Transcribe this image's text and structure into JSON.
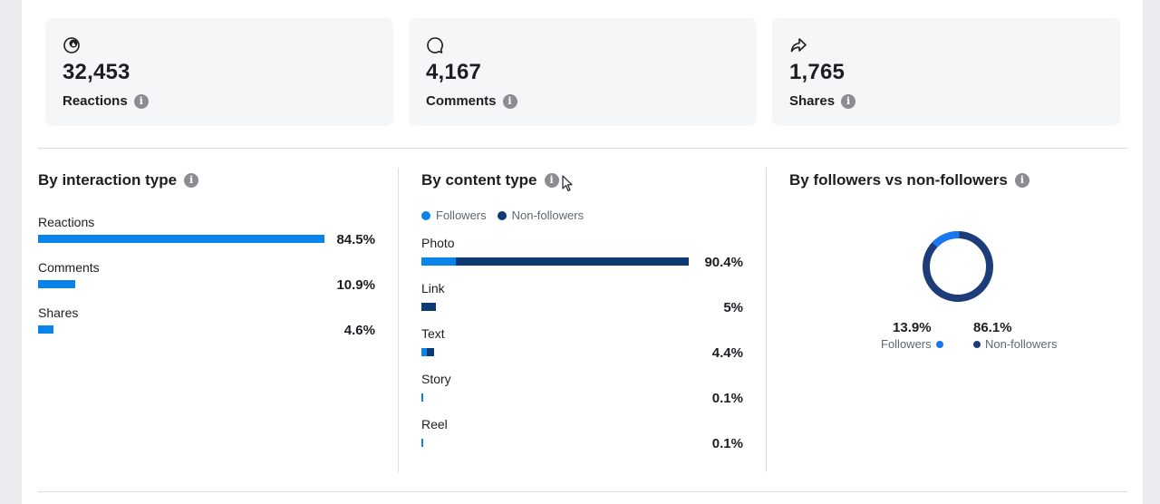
{
  "cards": [
    {
      "value": "32,453",
      "label": "Reactions",
      "icon": "reactions-icon"
    },
    {
      "value": "4,167",
      "label": "Comments",
      "icon": "comment-icon"
    },
    {
      "value": "1,765",
      "label": "Shares",
      "icon": "share-icon"
    }
  ],
  "interaction": {
    "title": "By interaction type",
    "rows": [
      {
        "label": "Reactions",
        "pct": "84.5%",
        "value": 84.5
      },
      {
        "label": "Comments",
        "pct": "10.9%",
        "value": 10.9
      },
      {
        "label": "Shares",
        "pct": "4.6%",
        "value": 4.6
      }
    ]
  },
  "content": {
    "title": "By content type",
    "legend": {
      "followers": "Followers",
      "non_followers": "Non-followers"
    },
    "rows": [
      {
        "label": "Photo",
        "pct": "90.4%",
        "value": 90.4
      },
      {
        "label": "Link",
        "pct": "5%",
        "value": 5
      },
      {
        "label": "Text",
        "pct": "4.4%",
        "value": 4.4
      },
      {
        "label": "Story",
        "pct": "0.1%",
        "value": 0.1
      },
      {
        "label": "Reel",
        "pct": "0.1%",
        "value": 0.1
      }
    ]
  },
  "followers": {
    "title": "By followers vs non-followers",
    "followers_pct": "13.9%",
    "followers_label": "Followers",
    "non_followers_pct": "86.1%",
    "non_followers_label": "Non-followers",
    "followers_value": 13.9,
    "non_followers_value": 86.1
  },
  "colors": {
    "accent": "#0a84e8",
    "dark": "#0b3a75",
    "donut_dark": "#1d3d7a",
    "donut_light": "#1877f2"
  }
}
